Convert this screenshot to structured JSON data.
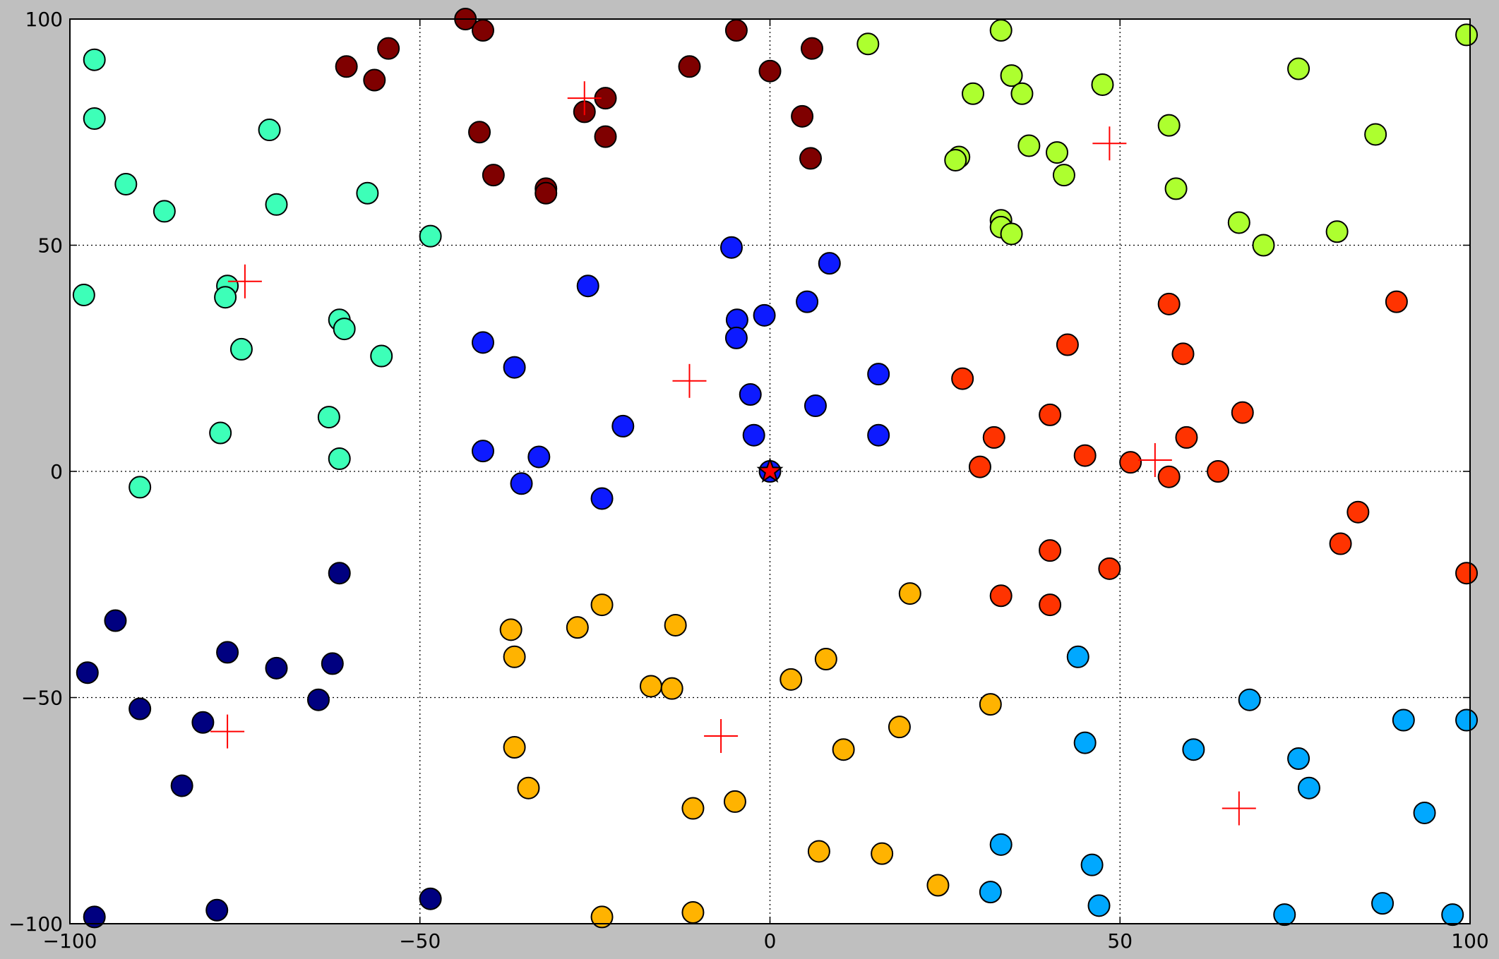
{
  "chart_data": {
    "type": "scatter",
    "xlim": [
      -100,
      100
    ],
    "ylim": [
      -100,
      100
    ],
    "grid": true,
    "x_ticks": [
      -100,
      -50,
      0,
      50,
      100
    ],
    "y_ticks": [
      -100,
      -50,
      0,
      50,
      100
    ],
    "x_tick_labels": [
      "−100",
      "−50",
      "0",
      "50",
      "100"
    ],
    "y_tick_labels": [
      "−100",
      "−50",
      "0",
      "50",
      "100"
    ],
    "clusters": [
      {
        "color": "#7f0000",
        "centroid": [
          -26.5,
          82.5
        ],
        "points": [
          [
            -43.5,
            100
          ],
          [
            -41,
            97.5
          ],
          [
            -60.5,
            89.5
          ],
          [
            -56.5,
            86.5
          ],
          [
            -54.5,
            93.5
          ],
          [
            -41.5,
            75
          ],
          [
            -39.5,
            65.5
          ],
          [
            -32,
            62.5
          ],
          [
            -32,
            61.5
          ],
          [
            -26.5,
            79.5
          ],
          [
            -23.5,
            82.5
          ],
          [
            -23.5,
            74
          ],
          [
            -11.5,
            89.5
          ],
          [
            -4.8,
            97.5
          ],
          [
            0,
            88.5
          ],
          [
            6,
            93.5
          ],
          [
            4.6,
            78.5
          ],
          [
            5.8,
            69.2
          ]
        ]
      },
      {
        "color": "#3dffb8",
        "centroid": [
          -75,
          42
        ],
        "points": [
          [
            -96.5,
            91
          ],
          [
            -96.5,
            78
          ],
          [
            -92,
            63.5
          ],
          [
            -86.5,
            57.5
          ],
          [
            -71.5,
            75.5
          ],
          [
            -70.5,
            59
          ],
          [
            -57.5,
            61.5
          ],
          [
            -48.5,
            52
          ],
          [
            -98,
            39
          ],
          [
            -77.5,
            41
          ],
          [
            -77.8,
            38.5
          ],
          [
            -75.5,
            27
          ],
          [
            -61.5,
            33.5
          ],
          [
            -60.8,
            31.5
          ],
          [
            -55.5,
            25.5
          ],
          [
            -63,
            12
          ],
          [
            -78.5,
            8.5
          ],
          [
            -61.5,
            2.8
          ],
          [
            -90,
            -3.5
          ]
        ]
      },
      {
        "color": "#adff2f",
        "centroid": [
          48.5,
          72.5
        ],
        "points": [
          [
            14,
            94.5
          ],
          [
            33,
            97.5
          ],
          [
            47.5,
            85.5
          ],
          [
            34.5,
            87.5
          ],
          [
            36,
            83.5
          ],
          [
            29,
            83.5
          ],
          [
            27,
            69.5
          ],
          [
            26.5,
            68.8
          ],
          [
            37,
            72
          ],
          [
            41,
            70.5
          ],
          [
            42,
            65.5
          ],
          [
            33,
            55.5
          ],
          [
            33,
            54
          ],
          [
            34.5,
            52.5
          ],
          [
            57,
            76.5
          ],
          [
            58,
            62.5
          ],
          [
            67,
            55
          ],
          [
            70.5,
            50
          ],
          [
            75.5,
            89
          ],
          [
            81,
            53
          ],
          [
            86.5,
            74.5
          ],
          [
            99.5,
            96.5
          ]
        ]
      },
      {
        "color": "#0d1aff",
        "centroid": [
          -11.5,
          20
        ],
        "points": [
          [
            -5.5,
            49.5
          ],
          [
            -26,
            41
          ],
          [
            -4.7,
            33.5
          ],
          [
            -0.8,
            34.5
          ],
          [
            5.3,
            37.5
          ],
          [
            8.5,
            46
          ],
          [
            -4.8,
            29.5
          ],
          [
            -41,
            28.5
          ],
          [
            -36.5,
            23
          ],
          [
            -2.8,
            17
          ],
          [
            6.5,
            14.5
          ],
          [
            15.5,
            21.5
          ],
          [
            -21,
            10
          ],
          [
            -2.3,
            8
          ],
          [
            15.5,
            8
          ],
          [
            -41,
            4.5
          ],
          [
            -33,
            3.2
          ],
          [
            -35.5,
            -2.7
          ],
          [
            -24,
            -6
          ],
          [
            0,
            0
          ]
        ]
      },
      {
        "color": "#ff3300",
        "centroid": [
          55,
          2.5
        ],
        "points": [
          [
            27.5,
            20.5
          ],
          [
            42.5,
            28
          ],
          [
            57,
            37
          ],
          [
            59,
            26
          ],
          [
            89.5,
            37.5
          ],
          [
            40,
            12.5
          ],
          [
            32,
            7.5
          ],
          [
            30,
            1
          ],
          [
            45,
            3.5
          ],
          [
            51.5,
            2
          ],
          [
            57,
            -1.2
          ],
          [
            59.5,
            7.5
          ],
          [
            64,
            0
          ],
          [
            67.5,
            13
          ],
          [
            84,
            -9
          ],
          [
            81.5,
            -16
          ],
          [
            99.5,
            -22.5
          ],
          [
            40,
            -17.5
          ],
          [
            48.5,
            -21.5
          ],
          [
            33,
            -27.5
          ],
          [
            40,
            -29.5
          ]
        ]
      },
      {
        "color": "#000080",
        "centroid": [
          -77.5,
          -57.5
        ],
        "points": [
          [
            -61.5,
            -22.5
          ],
          [
            -93.5,
            -33
          ],
          [
            -97.5,
            -44.5
          ],
          [
            -77.5,
            -40
          ],
          [
            -70.5,
            -43.5
          ],
          [
            -62.5,
            -42.5
          ],
          [
            -64.5,
            -50.5
          ],
          [
            -90,
            -52.5
          ],
          [
            -81,
            -55.5
          ],
          [
            -84,
            -69.5
          ],
          [
            -96.5,
            -98.5
          ],
          [
            -79,
            -97
          ],
          [
            -48.5,
            -94.5
          ]
        ]
      },
      {
        "color": "#ffb300",
        "centroid": [
          -7,
          -58.5
        ],
        "points": [
          [
            -24,
            -29.5
          ],
          [
            -37,
            -35
          ],
          [
            -27.5,
            -34.5
          ],
          [
            -13.5,
            -34
          ],
          [
            -36.5,
            -41
          ],
          [
            -17,
            -47.5
          ],
          [
            -14,
            -48
          ],
          [
            3,
            -46
          ],
          [
            8,
            -41.5
          ],
          [
            20,
            -27
          ],
          [
            18.5,
            -56.5
          ],
          [
            31.5,
            -51.5
          ],
          [
            -36.5,
            -61
          ],
          [
            -34.5,
            -70
          ],
          [
            -11,
            -74.5
          ],
          [
            -5,
            -73
          ],
          [
            10.5,
            -61.5
          ],
          [
            7,
            -84
          ],
          [
            16,
            -84.5
          ],
          [
            24,
            -91.5
          ],
          [
            -24,
            -98.5
          ],
          [
            -11,
            -97.5
          ]
        ]
      },
      {
        "color": "#00a8ff",
        "centroid": [
          67,
          -74.5
        ],
        "points": [
          [
            44,
            -41
          ],
          [
            68.5,
            -50.5
          ],
          [
            45,
            -60
          ],
          [
            60.5,
            -61.5
          ],
          [
            75.5,
            -63.5
          ],
          [
            77,
            -70
          ],
          [
            90.5,
            -55
          ],
          [
            99.5,
            -55
          ],
          [
            93.5,
            -75.5
          ],
          [
            33,
            -82.5
          ],
          [
            46,
            -87
          ],
          [
            31.5,
            -93
          ],
          [
            47,
            -96
          ],
          [
            73.5,
            -98
          ],
          [
            87.5,
            -95.5
          ],
          [
            97.5,
            -98
          ]
        ]
      }
    ],
    "star_marker": {
      "x": 0,
      "y": 0,
      "color": "#ff0000"
    },
    "centroid_marker_color": "#ff0000"
  }
}
